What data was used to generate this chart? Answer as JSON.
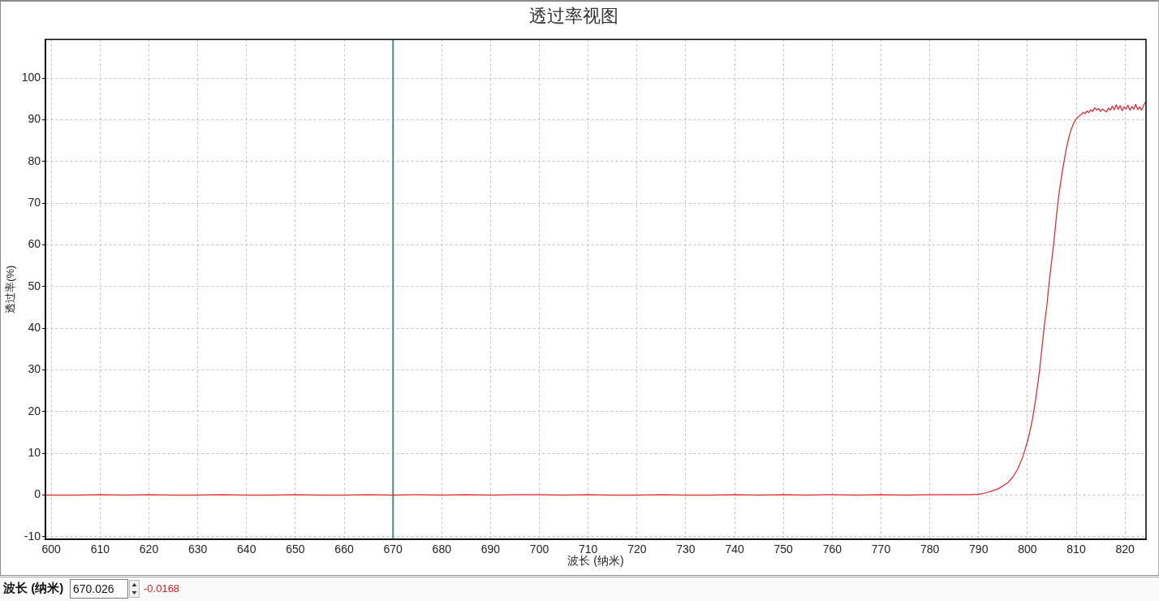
{
  "chart_data": {
    "type": "line",
    "title": "透过率视图",
    "xlabel": "波长 (纳米)",
    "ylabel": "透过率(%)",
    "x": [
      599,
      605,
      610,
      615,
      620,
      625,
      630,
      635,
      640,
      645,
      650,
      655,
      660,
      665,
      670,
      675,
      680,
      685,
      690,
      695,
      700,
      705,
      710,
      715,
      720,
      725,
      730,
      735,
      740,
      745,
      750,
      755,
      760,
      765,
      770,
      775,
      780,
      785,
      788,
      790,
      791,
      792,
      793,
      794,
      795,
      796,
      797,
      798,
      799,
      800,
      800.5,
      801,
      801.5,
      802,
      802.5,
      803,
      803.5,
      804,
      804.5,
      805,
      805.5,
      806,
      806.5,
      807,
      807.5,
      808,
      808.5,
      809,
      809.5,
      810,
      810.5,
      811,
      811.4,
      811.8,
      812.2,
      812.6,
      813,
      813.4,
      813.8,
      814.2,
      814.6,
      815,
      815.4,
      815.8,
      816.2,
      816.6,
      817,
      817.4,
      817.8,
      818.2,
      818.6,
      819,
      819.4,
      819.8,
      820.2,
      820.6,
      821,
      821.4,
      821.8,
      822.2,
      822.6,
      823,
      823.4,
      823.8,
      824.2
    ],
    "series": [
      {
        "color": "#e3212b",
        "values": [
          0,
          0,
          0.1,
          0,
          0.1,
          0,
          0,
          0.1,
          0,
          0,
          0.1,
          0,
          0,
          0.1,
          0,
          0.1,
          0,
          0.1,
          0,
          0.1,
          0.1,
          0,
          0.1,
          0,
          0,
          0.1,
          0,
          0,
          0.1,
          0,
          0.1,
          0,
          0.1,
          0,
          0.1,
          0,
          0.1,
          0.1,
          0.1,
          0.2,
          0.4,
          0.7,
          1.1,
          1.5,
          2.2,
          3.0,
          4.3,
          6.2,
          9.0,
          12.8,
          15.2,
          18.0,
          21.5,
          25.5,
          30.0,
          35.5,
          41.0,
          45.6,
          51.5,
          56.5,
          61.5,
          67.5,
          72.5,
          76.5,
          80.0,
          83.2,
          85.8,
          87.8,
          89.2,
          90.2,
          90.8,
          91.2,
          91.8,
          91.5,
          92.1,
          91.7,
          92.4,
          92.0,
          92.9,
          92.3,
          92.7,
          92.0,
          92.6,
          92.2,
          91.9,
          92.8,
          92.3,
          93.3,
          92.4,
          93.6,
          92.5,
          93.4,
          92.2,
          93.1,
          92.6,
          93.5,
          92.3,
          93.2,
          92.5,
          93.7,
          92.4,
          93.1,
          92.3,
          93.4,
          94.3
        ]
      }
    ],
    "xlim": [
      598.8,
      824.3
    ],
    "ylim": [
      -10.6,
      109.3
    ],
    "xticks": [
      600,
      610,
      620,
      630,
      640,
      650,
      660,
      670,
      680,
      690,
      700,
      710,
      720,
      730,
      740,
      750,
      760,
      770,
      780,
      790,
      800,
      810,
      820
    ],
    "yticks": [
      -10,
      0,
      10,
      20,
      30,
      40,
      50,
      60,
      70,
      80,
      90,
      100
    ],
    "grid": true,
    "ref_lines": [
      {
        "axis": "x",
        "value": 670.026,
        "color": "#4f8c89"
      }
    ],
    "annotations": [
      "波长 (纳米)",
      "670.026",
      "-0.0168"
    ]
  }
}
